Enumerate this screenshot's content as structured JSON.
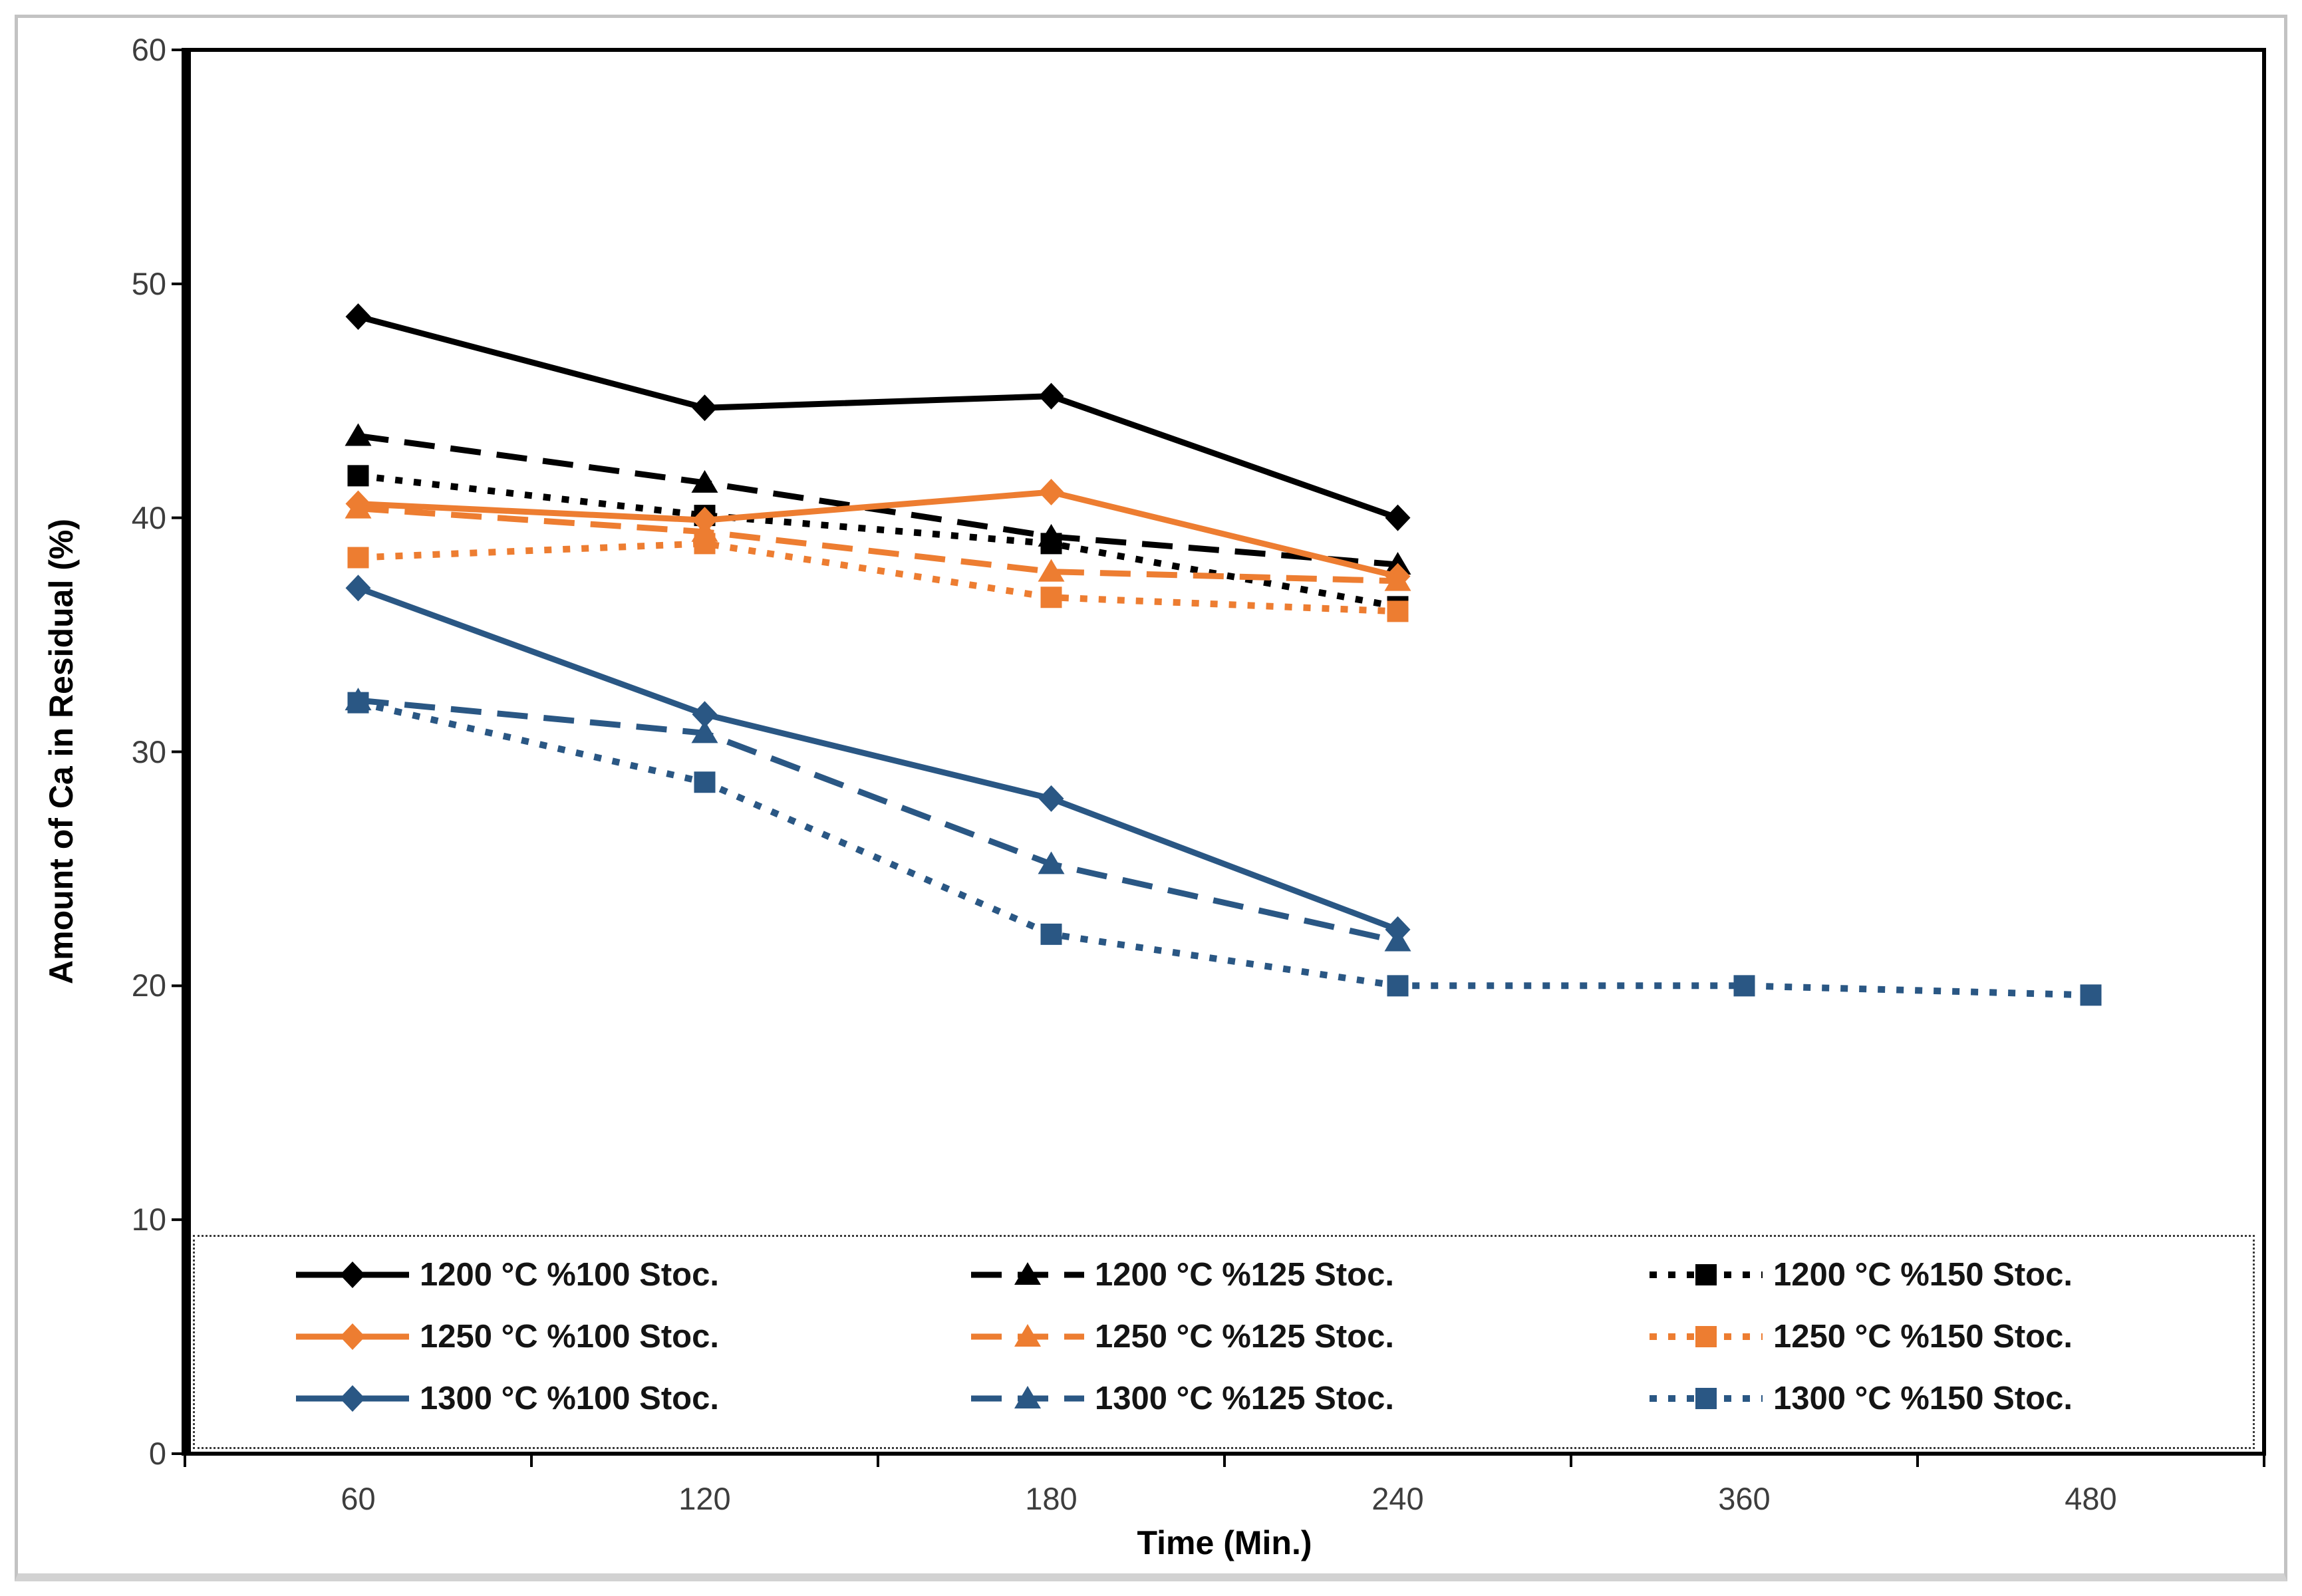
{
  "chart_data": {
    "type": "line",
    "title": "",
    "xlabel": "Time (Min.)",
    "ylabel": "Amount of Ca in Residual (%)",
    "x_categories": [
      60,
      120,
      180,
      240,
      360,
      480
    ],
    "x_axis_type": "categorical",
    "ylim": [
      0,
      60
    ],
    "y_ticks": [
      0,
      10,
      20,
      30,
      40,
      50,
      60
    ],
    "grid": false,
    "legend_position": "bottom-inside dotted box, 3 columns",
    "series": [
      {
        "name": "1200 °C %100 Stoc.",
        "color": "#000000",
        "line": "solid",
        "marker": "diamond",
        "values": [
          48.6,
          44.7,
          45.2,
          40.0,
          null,
          null
        ]
      },
      {
        "name": "1200 °C %125 Stoc.",
        "color": "#000000",
        "line": "dashed",
        "marker": "triangle",
        "values": [
          43.5,
          41.5,
          39.2,
          38.0,
          null,
          null
        ]
      },
      {
        "name": "1200 °C %150 Stoc.",
        "color": "#000000",
        "line": "dotted",
        "marker": "square",
        "values": [
          41.8,
          40.1,
          38.9,
          36.2,
          null,
          null
        ]
      },
      {
        "name": "1250 °C %100 Stoc.",
        "color": "#ED7D31",
        "line": "solid",
        "marker": "diamond",
        "values": [
          40.6,
          39.9,
          41.1,
          37.5,
          null,
          null
        ]
      },
      {
        "name": "1250 °C %125 Stoc.",
        "color": "#ED7D31",
        "line": "dashed",
        "marker": "triangle",
        "values": [
          40.4,
          39.4,
          37.7,
          37.3,
          null,
          null
        ]
      },
      {
        "name": "1250 °C %150 Stoc.",
        "color": "#ED7D31",
        "line": "dotted",
        "marker": "square",
        "values": [
          38.3,
          38.9,
          36.6,
          36.0,
          null,
          null
        ]
      },
      {
        "name": "1300 °C %100 Stoc.",
        "color": "#2A5784",
        "line": "solid",
        "marker": "diamond",
        "values": [
          37.0,
          31.6,
          28.0,
          22.4,
          null,
          null
        ]
      },
      {
        "name": "1300 °C %125 Stoc.",
        "color": "#2A5784",
        "line": "dashed",
        "marker": "triangle",
        "values": [
          32.2,
          30.8,
          25.2,
          21.9,
          null,
          null
        ]
      },
      {
        "name": "1300 °C %150 Stoc.",
        "color": "#2A5784",
        "line": "dotted",
        "marker": "square",
        "values": [
          32.1,
          28.7,
          22.2,
          20.0,
          20.0,
          19.6
        ]
      }
    ],
    "axis_color": "#000000",
    "tick_label_color": "#3d3d3d"
  }
}
